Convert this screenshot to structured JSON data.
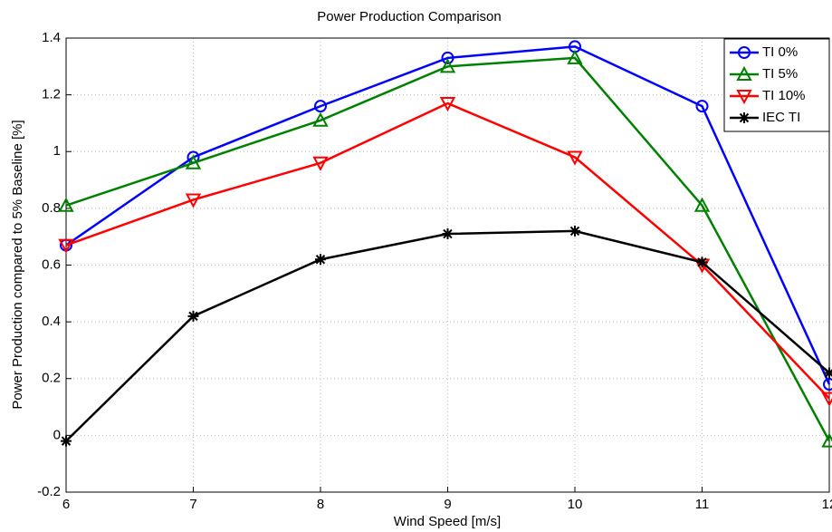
{
  "chart_data": {
    "type": "line",
    "title": "Power Production Comparison",
    "x_label": "Wind Speed [m/s]",
    "y_label": "Power Production compared to 5% Baseline [%]",
    "x": [
      6,
      7,
      8,
      9,
      10,
      11,
      12
    ],
    "xlim": [
      6,
      12
    ],
    "xticks": [
      6,
      7,
      8,
      9,
      10,
      11,
      12
    ],
    "ylim": [
      -0.2,
      1.4
    ],
    "yticks": [
      -0.2,
      0,
      0.2,
      0.4,
      0.6,
      0.8,
      1,
      1.2,
      1.4
    ],
    "grid": true,
    "legend": "upper right",
    "series": [
      {
        "name": "TI 0%",
        "color": "#0000ff",
        "marker": "circle",
        "values": [
          0.67,
          0.98,
          1.16,
          1.33,
          1.37,
          1.16,
          0.18
        ]
      },
      {
        "name": "TI 5%",
        "color": "#008000",
        "marker": "triangle-up",
        "values": [
          0.81,
          0.96,
          1.11,
          1.3,
          1.33,
          0.81,
          -0.02
        ]
      },
      {
        "name": "TI 10%",
        "color": "#ff0000",
        "marker": "triangle-down",
        "values": [
          0.67,
          0.83,
          0.96,
          1.17,
          0.98,
          0.6,
          0.13
        ]
      },
      {
        "name": "IEC TI",
        "color": "#000000",
        "marker": "asterisk",
        "values": [
          -0.02,
          0.42,
          0.62,
          0.71,
          0.72,
          0.61,
          0.22
        ]
      }
    ]
  }
}
